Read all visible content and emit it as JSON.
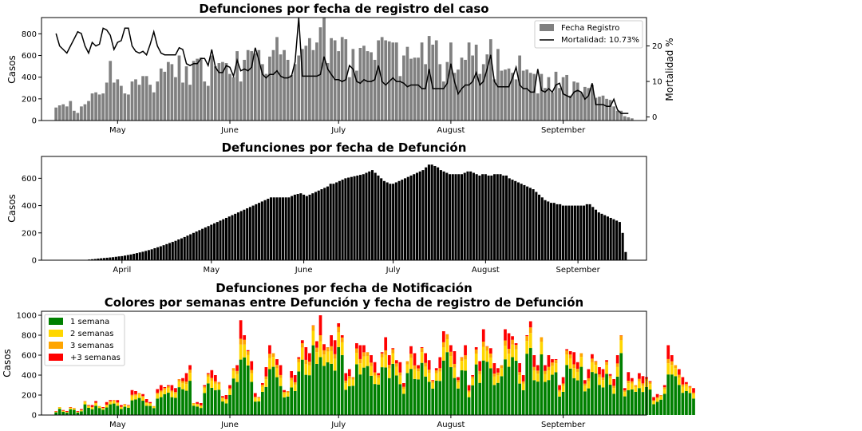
{
  "chart_data": [
    {
      "type": "bar",
      "title": "Defunciones por fecha de registro del caso",
      "ylabel": "Casos",
      "y2label": "Mortalidad %",
      "ylim": [
        0,
        950
      ],
      "y2lim": [
        -1,
        28
      ],
      "yticks": [
        0,
        200,
        400,
        600,
        800
      ],
      "y2ticks": [
        0,
        10,
        20
      ],
      "xlim": [
        "2020-04-10",
        "2020-09-24"
      ],
      "xticks": [
        {
          "label": "May",
          "date": "2020-05-01"
        },
        {
          "label": "June",
          "date": "2020-06-01"
        },
        {
          "label": "July",
          "date": "2020-07-01"
        },
        {
          "label": "August",
          "date": "2020-08-01"
        },
        {
          "label": "September",
          "date": "2020-09-01"
        }
      ],
      "start": "2020-04-14",
      "legend": "top-right",
      "series": [
        {
          "name": "Fecha Registro",
          "color": "#808080",
          "kind": "bar",
          "values": [
            120,
            140,
            150,
            130,
            180,
            90,
            70,
            130,
            150,
            180,
            250,
            260,
            240,
            250,
            350,
            550,
            350,
            380,
            320,
            250,
            240,
            360,
            380,
            330,
            410,
            410,
            330,
            260,
            360,
            480,
            450,
            540,
            520,
            400,
            600,
            350,
            500,
            330,
            550,
            570,
            580,
            360,
            320,
            600,
            500,
            530,
            540,
            530,
            430,
            400,
            640,
            360,
            560,
            650,
            640,
            620,
            650,
            520,
            430,
            590,
            650,
            770,
            610,
            650,
            560,
            420,
            520,
            600,
            660,
            690,
            760,
            650,
            720,
            860,
            950,
            530,
            760,
            740,
            640,
            770,
            750,
            400,
            660,
            460,
            670,
            690,
            640,
            630,
            560,
            740,
            770,
            740,
            730,
            720,
            720,
            410,
            600,
            680,
            570,
            580,
            580,
            720,
            520,
            780,
            700,
            740,
            520,
            360,
            540,
            720,
            440,
            470,
            580,
            560,
            720,
            600,
            700,
            430,
            520,
            610,
            750,
            380,
            660,
            460,
            470,
            480,
            440,
            380,
            600,
            460,
            470,
            440,
            430,
            250,
            430,
            300,
            400,
            260,
            450,
            300,
            400,
            420,
            230,
            360,
            350,
            260,
            310,
            300,
            330,
            210,
            220,
            230,
            200,
            190,
            130,
            90,
            90,
            40,
            30,
            20
          ]
        },
        {
          "name": "Mortalidad: 10.73%",
          "color": "#000000",
          "kind": "line",
          "values": [
            23.5,
            20,
            19,
            18,
            20,
            22,
            24,
            23.5,
            20,
            18,
            21,
            20,
            20.5,
            25,
            24.5,
            23,
            19,
            21,
            21.5,
            25,
            25,
            20,
            18.5,
            18,
            18.5,
            17.5,
            20.5,
            24,
            20,
            18,
            17.5,
            17.5,
            17.5,
            17.5,
            19.5,
            19,
            15,
            14.5,
            15,
            15,
            16.5,
            16.5,
            14.5,
            19,
            14,
            12.5,
            12.5,
            14.5,
            14,
            11.5,
            16,
            13,
            13.5,
            13,
            14,
            19.5,
            16,
            12,
            11,
            12,
            12,
            13,
            11.5,
            11,
            11,
            11.5,
            15.5,
            28,
            11.5,
            11.5,
            11.5,
            11.5,
            11.5,
            12,
            17,
            13.5,
            12,
            10.5,
            10.5,
            10,
            10.5,
            14.5,
            13.5,
            10,
            9.5,
            10.5,
            10,
            10,
            10.5,
            14.5,
            10,
            9,
            10,
            11,
            10,
            10,
            9.5,
            8.5,
            9,
            9,
            9,
            8,
            8,
            13.5,
            8,
            8,
            8,
            8,
            9.5,
            15,
            10,
            6.5,
            8,
            9,
            9,
            10,
            12.5,
            9,
            10,
            13.5,
            17.5,
            10,
            8.5,
            8.5,
            8.5,
            8.5,
            11,
            14,
            9,
            8,
            8,
            7,
            7,
            13.5,
            7.5,
            7,
            8,
            7,
            9,
            9.5,
            6.5,
            6,
            5.5,
            7,
            7.5,
            7,
            5,
            6,
            9.5,
            3.5,
            3.5,
            3.5,
            3,
            3,
            5,
            2,
            1,
            1,
            1
          ]
        }
      ]
    },
    {
      "type": "bar",
      "title": "Defunciones por fecha de Defunción",
      "ylabel": "Casos",
      "ylim": [
        0,
        760
      ],
      "yticks": [
        0,
        200,
        400,
        600
      ],
      "xlim": [
        "2020-03-05",
        "2020-09-24"
      ],
      "xticks": [
        {
          "label": "April",
          "date": "2020-04-01"
        },
        {
          "label": "May",
          "date": "2020-05-01"
        },
        {
          "label": "June",
          "date": "2020-06-01"
        },
        {
          "label": "July",
          "date": "2020-07-01"
        },
        {
          "label": "August",
          "date": "2020-08-01"
        },
        {
          "label": "September",
          "date": "2020-09-01"
        }
      ],
      "start": "2020-03-21",
      "series": [
        {
          "name": "",
          "color": "#000000",
          "kind": "bar",
          "values": [
            5,
            7,
            9,
            12,
            14,
            16,
            18,
            20,
            22,
            25,
            28,
            30,
            34,
            38,
            42,
            47,
            52,
            57,
            62,
            68,
            74,
            80,
            88,
            95,
            102,
            110,
            118,
            126,
            134,
            142,
            152,
            160,
            170,
            180,
            190,
            200,
            210,
            220,
            230,
            240,
            250,
            260,
            270,
            280,
            290,
            300,
            310,
            320,
            330,
            340,
            350,
            360,
            370,
            380,
            390,
            400,
            410,
            420,
            430,
            440,
            450,
            460,
            460,
            460,
            460,
            460,
            460,
            460,
            470,
            480,
            485,
            490,
            480,
            470,
            480,
            490,
            500,
            510,
            520,
            530,
            540,
            560,
            560,
            570,
            580,
            590,
            600,
            605,
            610,
            615,
            620,
            625,
            630,
            640,
            650,
            660,
            640,
            620,
            600,
            580,
            570,
            560,
            560,
            570,
            580,
            590,
            600,
            610,
            620,
            630,
            640,
            650,
            660,
            680,
            700,
            700,
            690,
            680,
            660,
            650,
            640,
            630,
            630,
            630,
            630,
            630,
            640,
            650,
            650,
            640,
            630,
            620,
            630,
            630,
            620,
            620,
            630,
            630,
            630,
            620,
            620,
            600,
            590,
            580,
            570,
            560,
            550,
            540,
            530,
            520,
            500,
            480,
            460,
            440,
            430,
            420,
            420,
            410,
            410,
            400,
            400,
            400,
            400,
            400,
            400,
            400,
            400,
            410,
            410,
            390,
            370,
            350,
            340,
            330,
            320,
            310,
            300,
            290,
            280,
            200,
            60
          ]
        }
      ]
    },
    {
      "type": "bar",
      "title": "Defunciones por fecha de Notificación",
      "subtitle": "Colores por semanas entre Defunción y fecha de registro de Defunción",
      "ylabel": "Casos",
      "ylim": [
        0,
        1040
      ],
      "yticks": [
        0,
        200,
        400,
        600,
        800,
        1000
      ],
      "xlim": [
        "2020-04-10",
        "2020-09-24"
      ],
      "xticks": [
        {
          "label": "May",
          "date": "2020-05-01"
        },
        {
          "label": "June",
          "date": "2020-06-01"
        },
        {
          "label": "July",
          "date": "2020-07-01"
        },
        {
          "label": "August",
          "date": "2020-08-01"
        },
        {
          "label": "September",
          "date": "2020-09-01"
        }
      ],
      "start": "2020-04-14",
      "legend": "top-left",
      "totals": [
        40,
        80,
        50,
        40,
        80,
        70,
        40,
        60,
        140,
        100,
        100,
        140,
        90,
        80,
        130,
        150,
        150,
        150,
        100,
        110,
        100,
        250,
        240,
        220,
        210,
        160,
        130,
        90,
        260,
        300,
        280,
        300,
        300,
        270,
        360,
        370,
        420,
        500,
        120,
        130,
        120,
        300,
        420,
        450,
        400,
        330,
        190,
        200,
        300,
        470,
        500,
        950,
        800,
        650,
        540,
        220,
        180,
        320,
        480,
        700,
        620,
        560,
        500,
        250,
        240,
        440,
        400,
        580,
        750,
        680,
        620,
        900,
        740,
        1000,
        710,
        680,
        800,
        750,
        920,
        800,
        420,
        460,
        380,
        720,
        700,
        700,
        630,
        600,
        530,
        420,
        630,
        780,
        600,
        670,
        550,
        530,
        320,
        540,
        690,
        620,
        500,
        680,
        620,
        550,
        350,
        470,
        580,
        840,
        810,
        700,
        640,
        380,
        580,
        700,
        300,
        400,
        680,
        540,
        860,
        690,
        670,
        520,
        470,
        500,
        860,
        820,
        790,
        720,
        520,
        400,
        800,
        940,
        600,
        500,
        780,
        500,
        600,
        560,
        560,
        300,
        380,
        660,
        640,
        630,
        530,
        620,
        350,
        460,
        610,
        540,
        480,
        460,
        550,
        410,
        360,
        600,
        800,
        270,
        430,
        370,
        300,
        420,
        390,
        380,
        340,
        180,
        210,
        200,
        300,
        700,
        600,
        500,
        460,
        380,
        330,
        290,
        270
      ]
    }
  ],
  "legend3": {
    "items": [
      {
        "label": "1 semana",
        "color": "#008000"
      },
      {
        "label": "2 semanas",
        "color": "#ffd700"
      },
      {
        "label": "3 semanas",
        "color": "#ffa500"
      },
      {
        "label": "+3 semanas",
        "color": "#ff0000"
      }
    ]
  }
}
